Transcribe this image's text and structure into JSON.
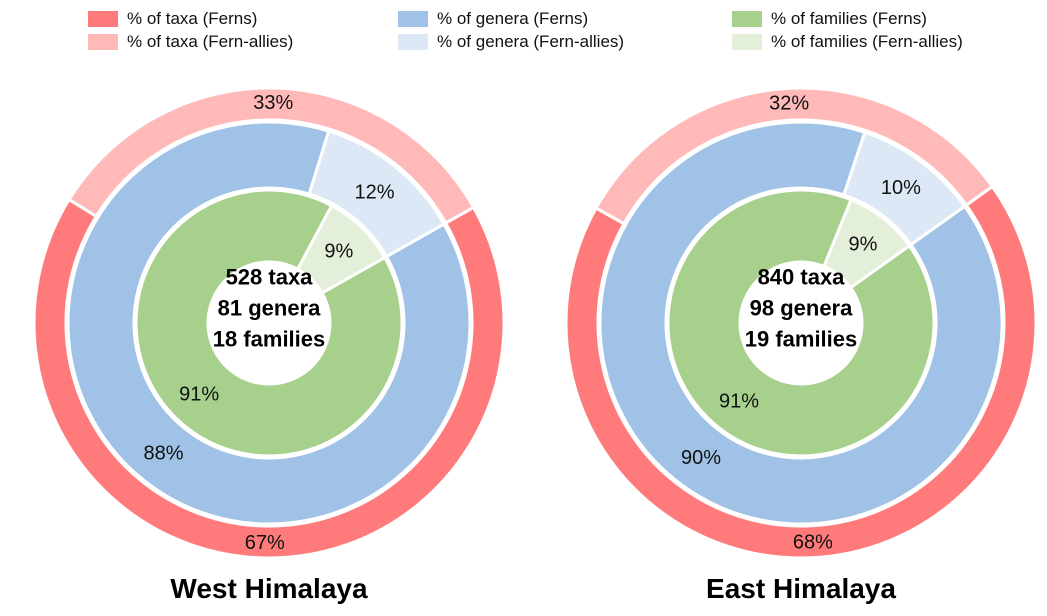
{
  "legend": [
    {
      "label": "% of taxa (Ferns)",
      "color": "#ff7b7b"
    },
    {
      "label": "% of taxa (Fern-allies)",
      "color": "#ffb9b9"
    },
    {
      "label": "% of genera (Ferns)",
      "color": "#9fc2e6"
    },
    {
      "label": "% of genera (Fern-allies)",
      "color": "#dce8f5"
    },
    {
      "label": "% of families (Ferns)",
      "color": "#a6d08c"
    },
    {
      "label": "% of families (Fern-allies)",
      "color": "#e3efd8"
    }
  ],
  "chart_data": [
    {
      "type": "pie",
      "title": "West Himalaya",
      "center_lines": [
        "528 taxa",
        "81 genera",
        "18 families"
      ],
      "rings": [
        {
          "name": "taxa",
          "labels": [
            "67%",
            "33%"
          ],
          "values": [
            67,
            33
          ],
          "colors": [
            "#ff7b7b",
            "#ffb9b9"
          ]
        },
        {
          "name": "genera",
          "labels": [
            "88%",
            "12%"
          ],
          "values": [
            88,
            12
          ],
          "colors": [
            "#9fc2e6",
            "#dce8f5"
          ]
        },
        {
          "name": "families",
          "labels": [
            "91%",
            "9%"
          ],
          "values": [
            91,
            9
          ],
          "colors": [
            "#a6d08c",
            "#e3efd8"
          ]
        }
      ]
    },
    {
      "type": "pie",
      "title": "East Himalaya",
      "center_lines": [
        "840 taxa",
        "98 genera",
        "19 families"
      ],
      "rings": [
        {
          "name": "taxa",
          "labels": [
            "68%",
            "32%"
          ],
          "values": [
            68,
            32
          ],
          "colors": [
            "#ff7b7b",
            "#ffb9b9"
          ]
        },
        {
          "name": "genera",
          "labels": [
            "90%",
            "10%"
          ],
          "values": [
            90,
            10
          ],
          "colors": [
            "#9fc2e6",
            "#dce8f5"
          ]
        },
        {
          "name": "families",
          "labels": [
            "91%",
            "9%"
          ],
          "values": [
            91,
            9
          ],
          "colors": [
            "#a6d08c",
            "#e3efd8"
          ]
        }
      ]
    }
  ]
}
